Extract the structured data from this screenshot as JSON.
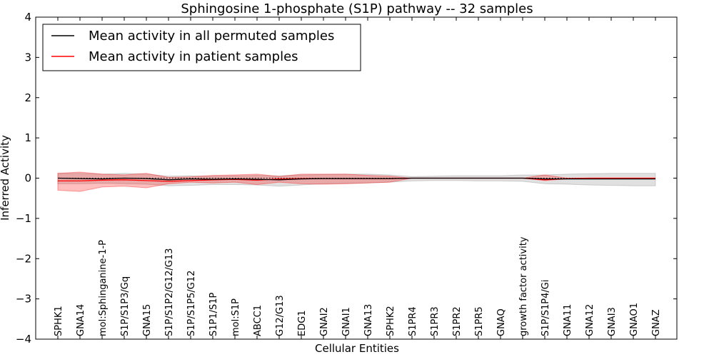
{
  "chart_data": {
    "type": "line",
    "title": "Sphingosine 1-phosphate (S1P) pathway -- 32 samples",
    "xlabel": "Cellular Entities",
    "ylabel": "Inferred Activity",
    "ylim": [
      -4,
      4
    ],
    "yticks": [
      -4,
      -3,
      -2,
      -1,
      0,
      1,
      2,
      3,
      4
    ],
    "ytick_labels": [
      "−4",
      "−3",
      "−2",
      "−1",
      "0",
      "1",
      "2",
      "3",
      "4"
    ],
    "legend_position": "upper-left",
    "categories": [
      "SPHK1",
      "GNA14",
      "mol:Sphinganine-1-P",
      "S1P/S1P3/Gq",
      "GNA15",
      "S1P/S1P2/G12/G13",
      "S1P/S1P5/G12",
      "S1P1/S1P",
      "mol:S1P",
      "ABCC1",
      "G12/G13",
      "EDG1",
      "GNAI2",
      "GNAI1",
      "GNA13",
      "SPHK2",
      "S1PR4",
      "S1PR3",
      "S1PR2",
      "S1PR5",
      "GNAQ",
      "growth factor activity",
      "S1P/S1P4/Gi",
      "GNA11",
      "GNA12",
      "GNAI3",
      "GNAO1",
      "GNAZ"
    ],
    "series": [
      {
        "name": "Mean activity in all permuted samples",
        "color": "#000000",
        "values": [
          0.0,
          -0.01,
          -0.02,
          0.0,
          -0.01,
          -0.04,
          -0.02,
          -0.03,
          -0.02,
          -0.03,
          -0.04,
          -0.02,
          -0.01,
          -0.01,
          -0.01,
          -0.01,
          0.0,
          0.0,
          0.0,
          0.0,
          0.0,
          0.0,
          -0.02,
          -0.02,
          -0.02,
          -0.02,
          -0.02,
          -0.02
        ],
        "upper": [
          0.12,
          0.12,
          0.1,
          0.12,
          0.1,
          0.05,
          0.06,
          0.05,
          0.06,
          0.07,
          0.06,
          0.08,
          0.09,
          0.1,
          0.1,
          0.08,
          0.04,
          0.05,
          0.06,
          0.06,
          0.06,
          0.08,
          0.08,
          0.1,
          0.11,
          0.12,
          0.12,
          0.12
        ],
        "lower": [
          -0.14,
          -0.14,
          -0.13,
          -0.14,
          -0.15,
          -0.19,
          -0.18,
          -0.16,
          -0.16,
          -0.17,
          -0.2,
          -0.17,
          -0.14,
          -0.13,
          -0.12,
          -0.1,
          -0.07,
          -0.06,
          -0.06,
          -0.07,
          -0.07,
          -0.08,
          -0.14,
          -0.15,
          -0.17,
          -0.18,
          -0.19,
          -0.19
        ]
      },
      {
        "name": "Mean activity in patient samples",
        "color": "#ff0000",
        "values": [
          -0.07,
          -0.07,
          -0.05,
          -0.04,
          -0.06,
          -0.08,
          -0.06,
          -0.04,
          -0.03,
          -0.05,
          -0.02,
          -0.01,
          -0.01,
          -0.01,
          -0.01,
          -0.01,
          0.0,
          0.0,
          0.0,
          0.0,
          0.0,
          0.0,
          -0.04,
          -0.01,
          0.0,
          0.0,
          0.0,
          0.0
        ],
        "upper": [
          0.12,
          0.15,
          0.1,
          0.08,
          0.12,
          0.02,
          0.03,
          0.07,
          0.08,
          0.1,
          0.04,
          0.1,
          0.1,
          0.1,
          0.07,
          0.05,
          0.0,
          0.0,
          0.0,
          0.0,
          0.0,
          0.0,
          0.08,
          0.0,
          0.0,
          0.0,
          0.0,
          0.0
        ],
        "lower": [
          -0.3,
          -0.33,
          -0.22,
          -0.2,
          -0.24,
          -0.14,
          -0.1,
          -0.12,
          -0.1,
          -0.16,
          -0.1,
          -0.14,
          -0.15,
          -0.14,
          -0.12,
          -0.1,
          0.0,
          0.0,
          0.0,
          0.0,
          0.0,
          0.0,
          -0.06,
          -0.02,
          0.0,
          0.0,
          0.0,
          0.0
        ]
      }
    ],
    "reference_line": 0
  }
}
